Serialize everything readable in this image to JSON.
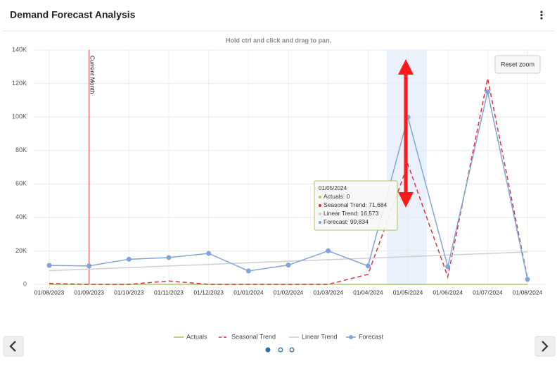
{
  "header": {
    "title": "Demand Forecast Analysis"
  },
  "chart_data": {
    "type": "line",
    "subtitle": "Hold ctrl and click and drag to pan.",
    "reset_button": "Reset zoom",
    "categories": [
      "01/08/2023",
      "01/09/2023",
      "01/10/2023",
      "01/11/2023",
      "01/12/2023",
      "01/01/2024",
      "01/02/2024",
      "01/03/2024",
      "01/04/2024",
      "01/05/2024",
      "01/06/2024",
      "01/07/2024",
      "01/08/2024"
    ],
    "series": [
      {
        "name": "Actuals",
        "color": "#a5c85f",
        "line_style": "solid",
        "marker": false,
        "values": [
          0,
          0,
          0,
          0,
          0,
          0,
          0,
          0,
          0,
          0,
          0,
          0,
          0
        ]
      },
      {
        "name": "Seasonal Trend",
        "color": "#e0313d",
        "line_style": "dashed",
        "marker": false,
        "values": [
          500,
          0,
          0,
          2000,
          0,
          0,
          0,
          0,
          6000,
          71684,
          4500,
          123000,
          3500
        ],
        "value_labels": [
          null,
          null,
          null,
          null,
          null,
          null,
          null,
          null,
          null,
          "71,684",
          null,
          null,
          null
        ]
      },
      {
        "name": "Linear Trend",
        "color": "#cfcfcf",
        "line_style": "solid",
        "marker": false,
        "values": [
          8200,
          9100,
          10000,
          11000,
          11900,
          12900,
          13800,
          14700,
          15600,
          16573,
          17500,
          18400,
          19400
        ],
        "value_labels": [
          null,
          null,
          null,
          null,
          null,
          null,
          null,
          null,
          null,
          "16,573",
          null,
          null,
          null
        ]
      },
      {
        "name": "Forecast",
        "color": "#7ea6dc",
        "line_style": "solid",
        "marker": true,
        "values": [
          11300,
          11000,
          15000,
          16000,
          18500,
          8000,
          11500,
          20000,
          11000,
          99834,
          10500,
          115000,
          3000
        ],
        "value_labels": [
          null,
          null,
          null,
          null,
          null,
          null,
          null,
          null,
          null,
          "99,834",
          null,
          null,
          null
        ]
      }
    ],
    "ylim": [
      0,
      140000
    ],
    "yticks": [
      0,
      {
        "value": 20000,
        "label": "20K"
      },
      {
        "value": 40000,
        "label": "40K"
      },
      {
        "value": 60000,
        "label": "60K"
      },
      {
        "value": 80000,
        "label": "80K"
      },
      {
        "value": 100000,
        "label": "100K"
      },
      {
        "value": 120000,
        "label": "120K"
      },
      {
        "value": 140000,
        "label": "140K"
      }
    ],
    "grid": true,
    "plot_line": {
      "label": "Current Month",
      "x": "01/09/2023",
      "color": "#e8707a"
    },
    "legend": "bottom"
  }
}
